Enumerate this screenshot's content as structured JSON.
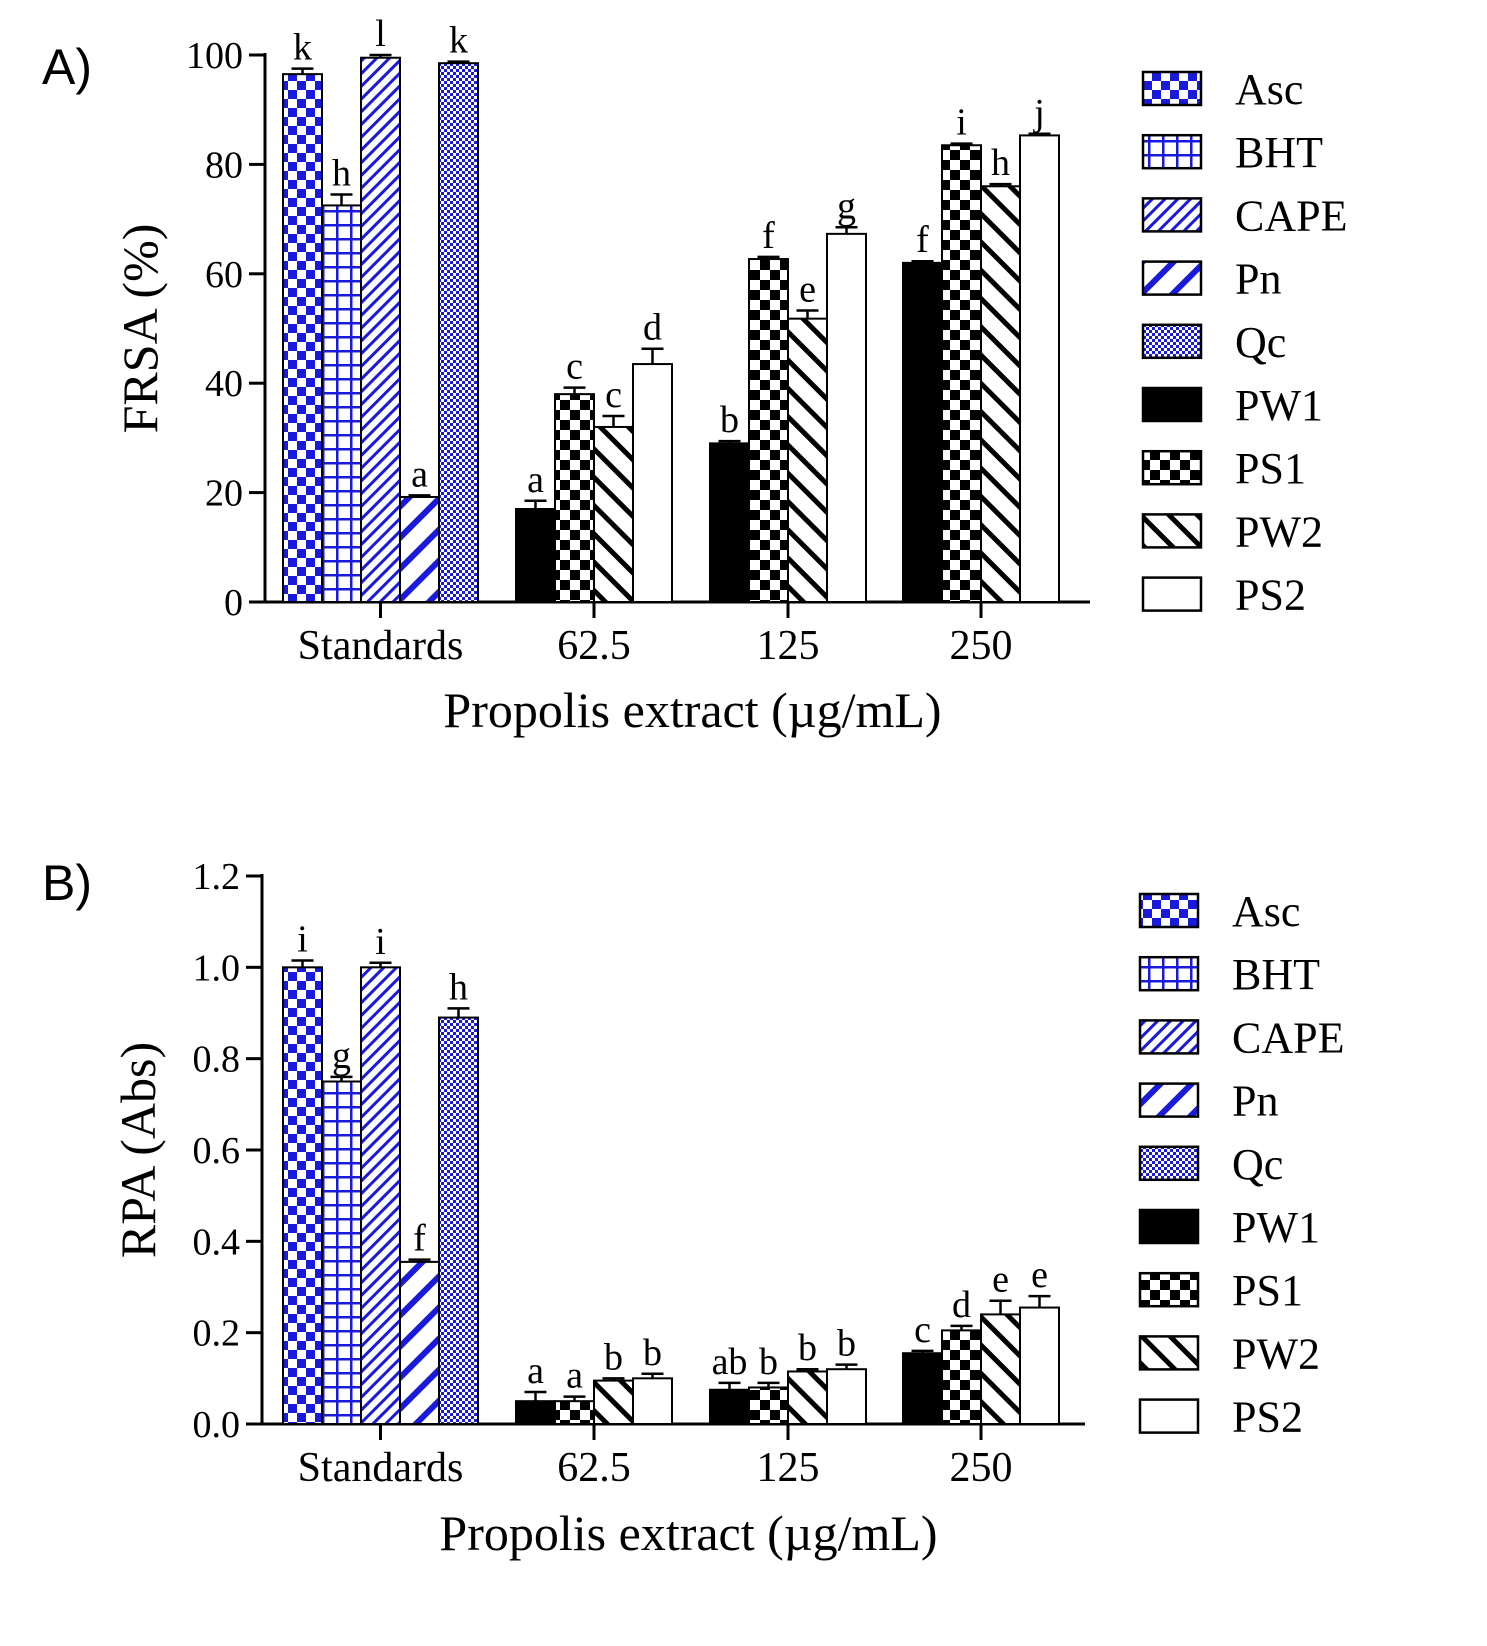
{
  "colors": {
    "blue": "#1a1adc",
    "black": "#000000",
    "white": "#ffffff"
  },
  "legend": [
    {
      "name": "Asc",
      "pattern": "checker-blue"
    },
    {
      "name": "BHT",
      "pattern": "grid-blue"
    },
    {
      "name": "CAPE",
      "pattern": "diag-fine-blue"
    },
    {
      "name": "Pn",
      "pattern": "diag-wide-blue"
    },
    {
      "name": "Qc",
      "pattern": "dots-blue"
    },
    {
      "name": "PW1",
      "pattern": "solid-black"
    },
    {
      "name": "PS1",
      "pattern": "checker-black"
    },
    {
      "name": "PW2",
      "pattern": "diag-up-black"
    },
    {
      "name": "PS2",
      "pattern": "solid-white"
    }
  ],
  "chart_data": [
    {
      "type": "bar",
      "panel_label": "A)",
      "title": "",
      "xlabel": "Propolis extract (µg/mL)",
      "ylabel": "FRSA (%)",
      "ylim": [
        0,
        100
      ],
      "yticks": [
        "0",
        "20",
        "40",
        "60",
        "80",
        "100"
      ],
      "categories": [
        "Standards",
        "62.5",
        "125",
        "250"
      ],
      "groups": [
        {
          "category": "Standards",
          "bars": [
            {
              "series": "Asc",
              "value": 96.5,
              "error": 1.0,
              "label": "k"
            },
            {
              "series": "BHT",
              "value": 72.5,
              "error": 2.0,
              "label": "h"
            },
            {
              "series": "CAPE",
              "value": 99.5,
              "error": 0.5,
              "label": "l"
            },
            {
              "series": "Pn",
              "value": 19.2,
              "error": 0.3,
              "label": "a"
            },
            {
              "series": "Qc",
              "value": 98.5,
              "error": 0.3,
              "label": "k"
            }
          ]
        },
        {
          "category": "62.5",
          "bars": [
            {
              "series": "PW1",
              "value": 17.0,
              "error": 1.5,
              "label": "a"
            },
            {
              "series": "PS1",
              "value": 38.0,
              "error": 1.2,
              "label": "c"
            },
            {
              "series": "PW2",
              "value": 32.0,
              "error": 2.0,
              "label": "c"
            },
            {
              "series": "PS2",
              "value": 43.5,
              "error": 2.8,
              "label": "d"
            }
          ]
        },
        {
          "category": "125",
          "bars": [
            {
              "series": "PW1",
              "value": 29.0,
              "error": 0.4,
              "label": "b"
            },
            {
              "series": "PS1",
              "value": 62.7,
              "error": 0.4,
              "label": "f"
            },
            {
              "series": "PW2",
              "value": 51.8,
              "error": 1.5,
              "label": "e"
            },
            {
              "series": "PS2",
              "value": 67.3,
              "error": 1.2,
              "label": "g"
            }
          ]
        },
        {
          "category": "250",
          "bars": [
            {
              "series": "PW1",
              "value": 62.0,
              "error": 0.3,
              "label": "f"
            },
            {
              "series": "PS1",
              "value": 83.5,
              "error": 0.3,
              "label": "i"
            },
            {
              "series": "PW2",
              "value": 76.0,
              "error": 0.4,
              "label": "h"
            },
            {
              "series": "PS2",
              "value": 85.3,
              "error": 0.3,
              "label": "j"
            }
          ]
        }
      ]
    },
    {
      "type": "bar",
      "panel_label": "B)",
      "title": "",
      "xlabel": "Propolis extract (µg/mL)",
      "ylabel": "RPA (Abs)",
      "ylim": [
        0,
        1.2
      ],
      "yticks": [
        "0.0",
        "0.2",
        "0.4",
        "0.6",
        "0.8",
        "1.0",
        "1.2"
      ],
      "categories": [
        "Standards",
        "62.5",
        "125",
        "250"
      ],
      "groups": [
        {
          "category": "Standards",
          "bars": [
            {
              "series": "Asc",
              "value": 1.0,
              "error": 0.015,
              "label": "i"
            },
            {
              "series": "BHT",
              "value": 0.75,
              "error": 0.01,
              "label": "g"
            },
            {
              "series": "CAPE",
              "value": 1.0,
              "error": 0.01,
              "label": "i"
            },
            {
              "series": "Pn",
              "value": 0.355,
              "error": 0.005,
              "label": "f"
            },
            {
              "series": "Qc",
              "value": 0.89,
              "error": 0.02,
              "label": "h"
            }
          ]
        },
        {
          "category": "62.5",
          "bars": [
            {
              "series": "PW1",
              "value": 0.05,
              "error": 0.02,
              "label": "a"
            },
            {
              "series": "PS1",
              "value": 0.05,
              "error": 0.01,
              "label": "a"
            },
            {
              "series": "PW2",
              "value": 0.095,
              "error": 0.005,
              "label": "b"
            },
            {
              "series": "PS2",
              "value": 0.1,
              "error": 0.01,
              "label": "b"
            }
          ]
        },
        {
          "category": "125",
          "bars": [
            {
              "series": "PW1",
              "value": 0.075,
              "error": 0.015,
              "label": "ab"
            },
            {
              "series": "PS1",
              "value": 0.08,
              "error": 0.01,
              "label": "b"
            },
            {
              "series": "PW2",
              "value": 0.115,
              "error": 0.005,
              "label": "b"
            },
            {
              "series": "PS2",
              "value": 0.12,
              "error": 0.01,
              "label": "b"
            }
          ]
        },
        {
          "category": "250",
          "bars": [
            {
              "series": "PW1",
              "value": 0.155,
              "error": 0.005,
              "label": "c"
            },
            {
              "series": "PS1",
              "value": 0.205,
              "error": 0.01,
              "label": "d"
            },
            {
              "series": "PW2",
              "value": 0.24,
              "error": 0.03,
              "label": "e"
            },
            {
              "series": "PS2",
              "value": 0.255,
              "error": 0.025,
              "label": "e"
            }
          ]
        }
      ]
    }
  ]
}
